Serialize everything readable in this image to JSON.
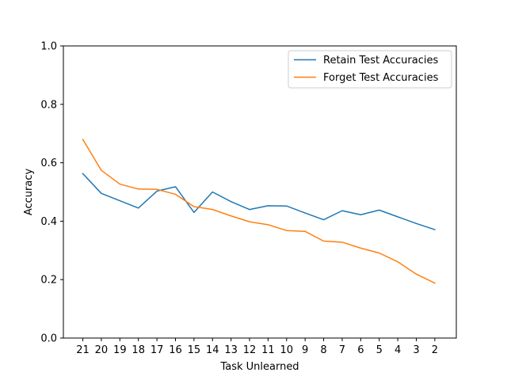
{
  "chart_data": {
    "type": "line",
    "title": "",
    "xlabel": "Task Unlearned",
    "ylabel": "Accuracy",
    "categories": [
      "21",
      "20",
      "19",
      "18",
      "17",
      "16",
      "15",
      "14",
      "13",
      "12",
      "11",
      "10",
      "9",
      "8",
      "7",
      "6",
      "5",
      "4",
      "3",
      "2"
    ],
    "ylim": [
      0.0,
      1.0
    ],
    "yticks": [
      "0.0",
      "0.2",
      "0.4",
      "0.6",
      "0.8",
      "1.0"
    ],
    "grid": false,
    "legend_position": "top-right",
    "series": [
      {
        "name": "Retain Test Accuracies",
        "color": "#1f77b4",
        "values": [
          0.563,
          0.495,
          0.47,
          0.445,
          0.503,
          0.518,
          0.43,
          0.5,
          0.467,
          0.44,
          0.453,
          0.452,
          0.428,
          0.405,
          0.436,
          0.422,
          0.438,
          0.415,
          0.392,
          0.371
        ]
      },
      {
        "name": "Forget Test Accuracies",
        "color": "#ff7f0e",
        "values": [
          0.68,
          0.574,
          0.527,
          0.51,
          0.509,
          0.492,
          0.45,
          0.44,
          0.418,
          0.398,
          0.388,
          0.368,
          0.365,
          0.332,
          0.328,
          0.308,
          0.291,
          0.261,
          0.219,
          0.188
        ]
      }
    ]
  }
}
